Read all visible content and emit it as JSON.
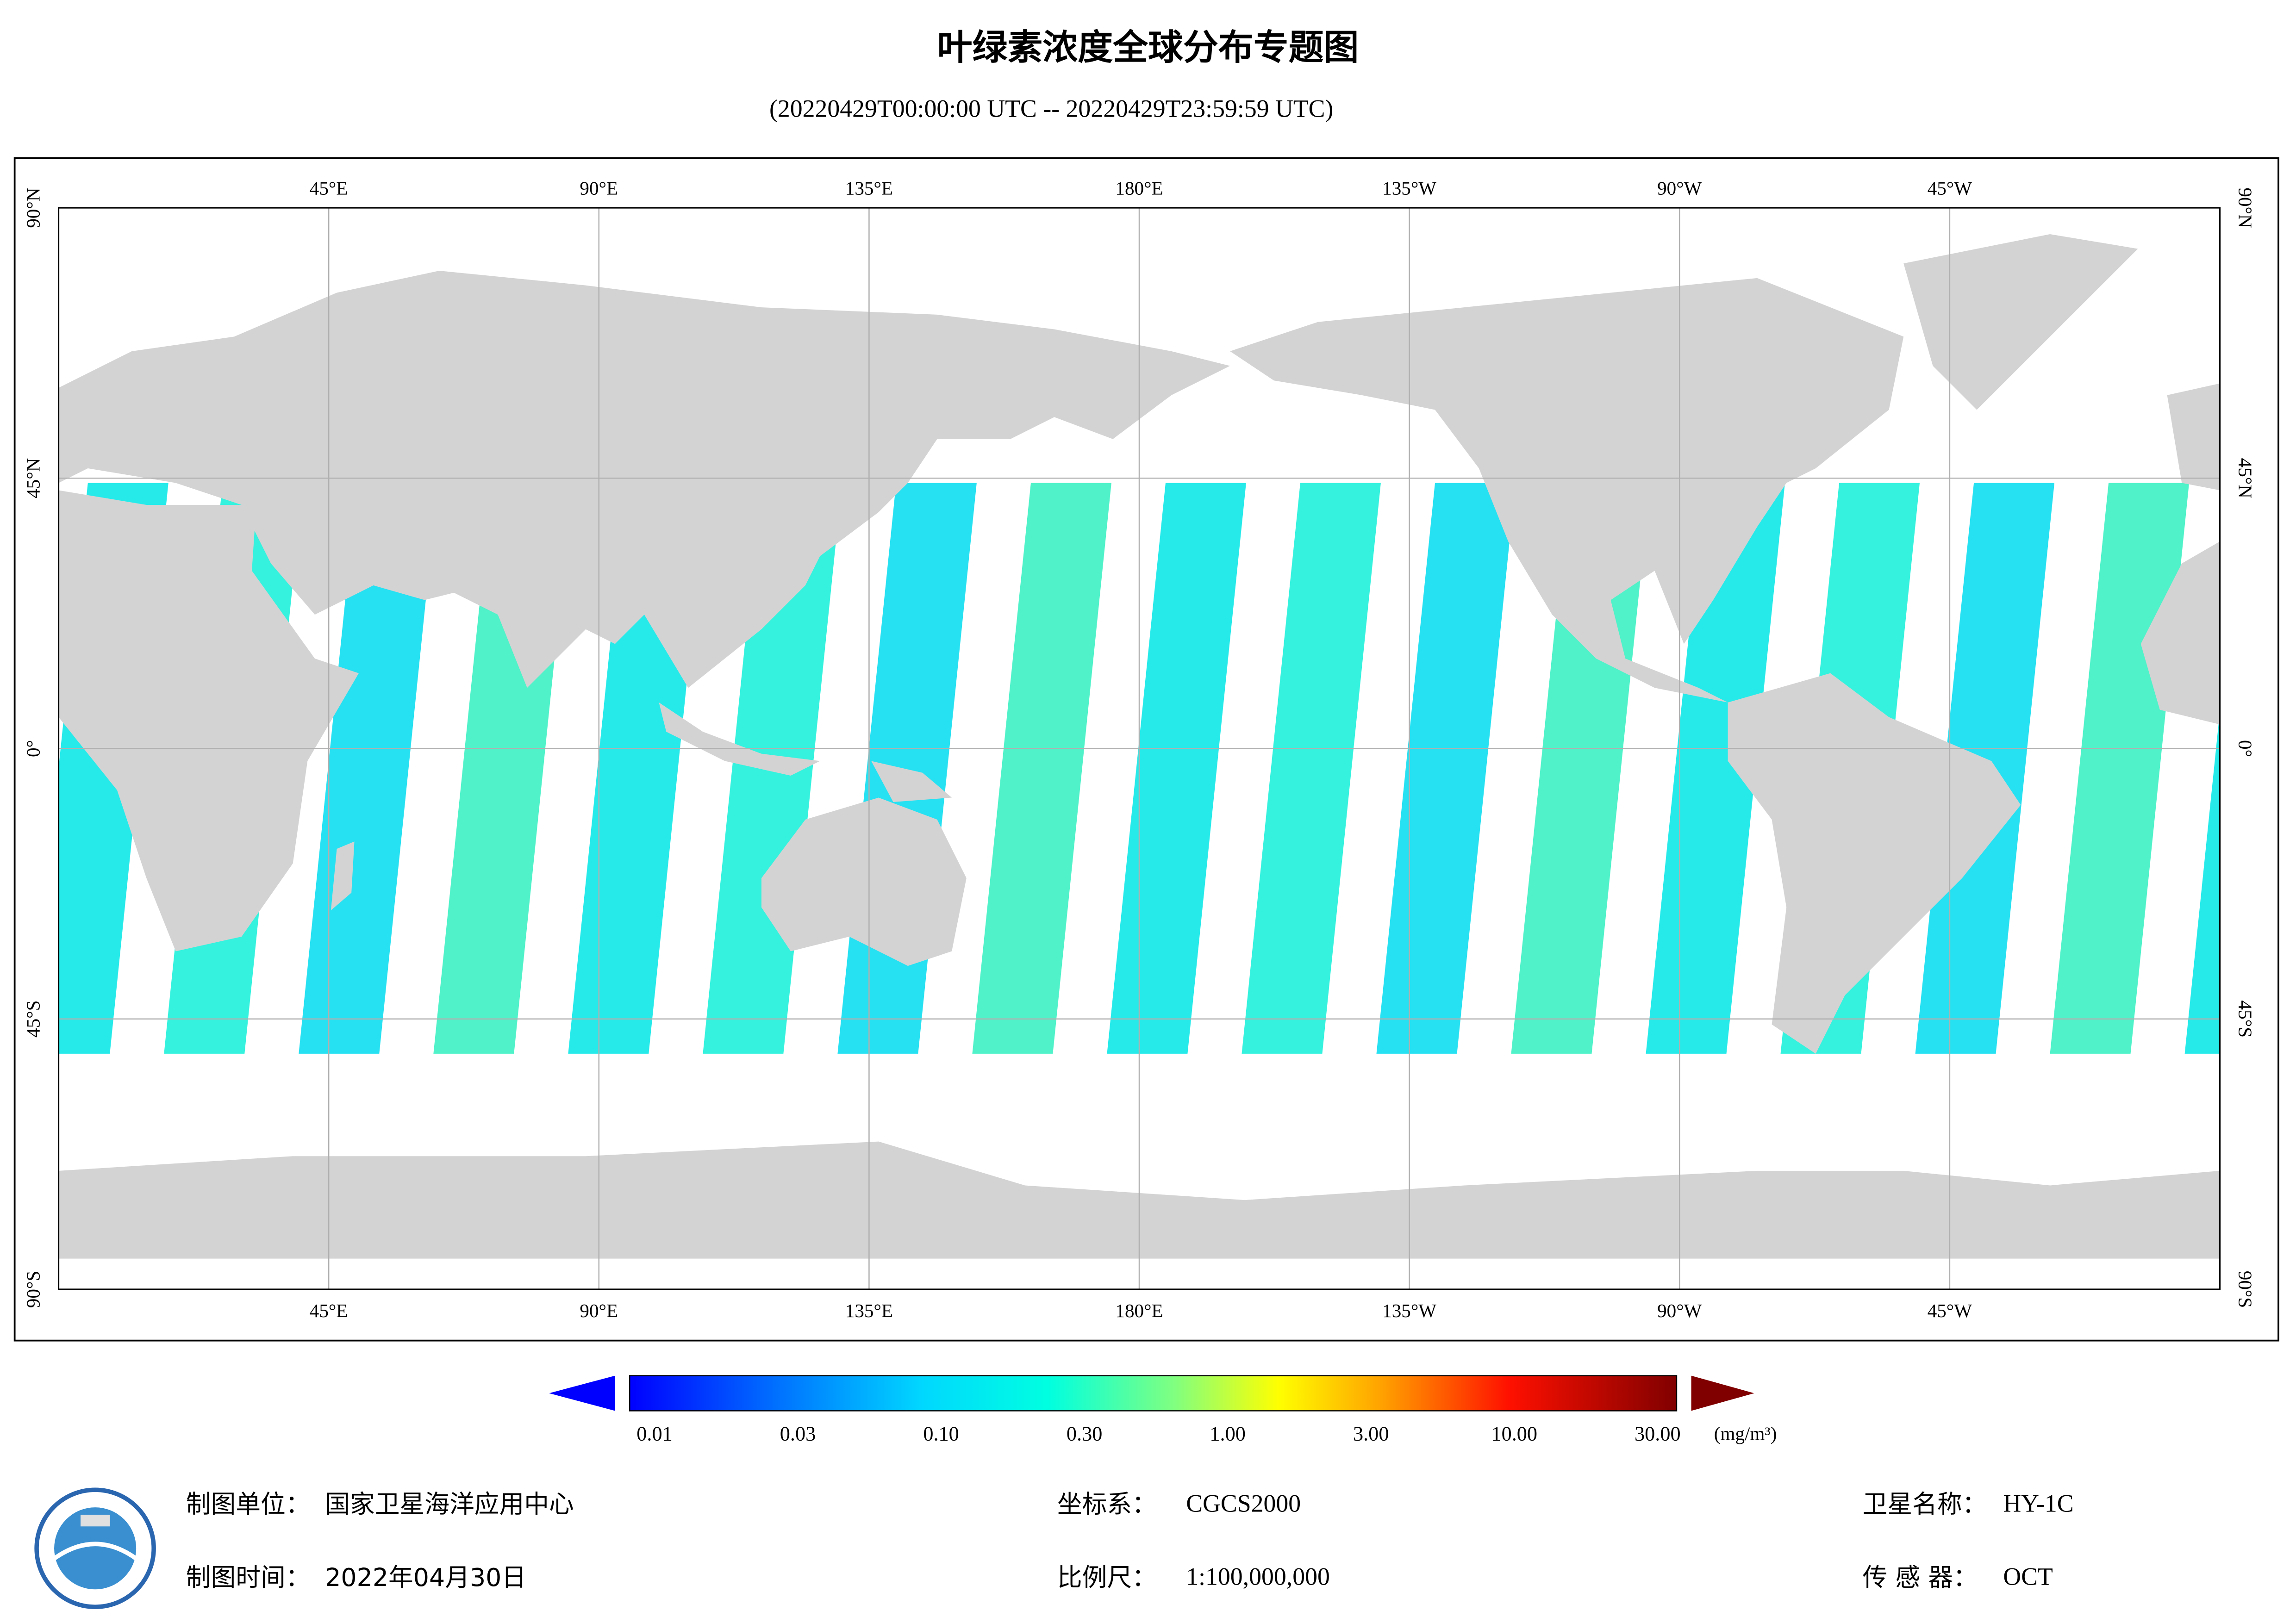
{
  "header": {
    "title": "叶绿素浓度全球分布专题图",
    "subtitle": "(20220429T00:00:00 UTC -- 20220429T23:59:59 UTC)"
  },
  "map": {
    "lon_labels": [
      "45°E",
      "90°E",
      "135°E",
      "180°E",
      "135°W",
      "90°W",
      "45°W"
    ],
    "lat_labels": [
      "90°N",
      "45°N",
      "0°",
      "45°S",
      "90°S"
    ]
  },
  "colorbar": {
    "ticks": [
      "0.01",
      "0.03",
      "0.10",
      "0.30",
      "1.00",
      "3.00",
      "10.00",
      "30.00"
    ],
    "unit": "(mg/m³)"
  },
  "footer": {
    "agency_label": "制图单位：",
    "agency": "国家卫星海洋应用中心",
    "date_label": "制图时间：",
    "date": "2022年04月30日",
    "crs_label": "坐标系：",
    "crs": "CGCS2000",
    "scale_label": "比例尺：",
    "scale": "1:100,000,000",
    "satellite_label": "卫星名称：",
    "satellite": "HY-1C",
    "sensor_label": "传 感 器：",
    "sensor": "OCT"
  }
}
